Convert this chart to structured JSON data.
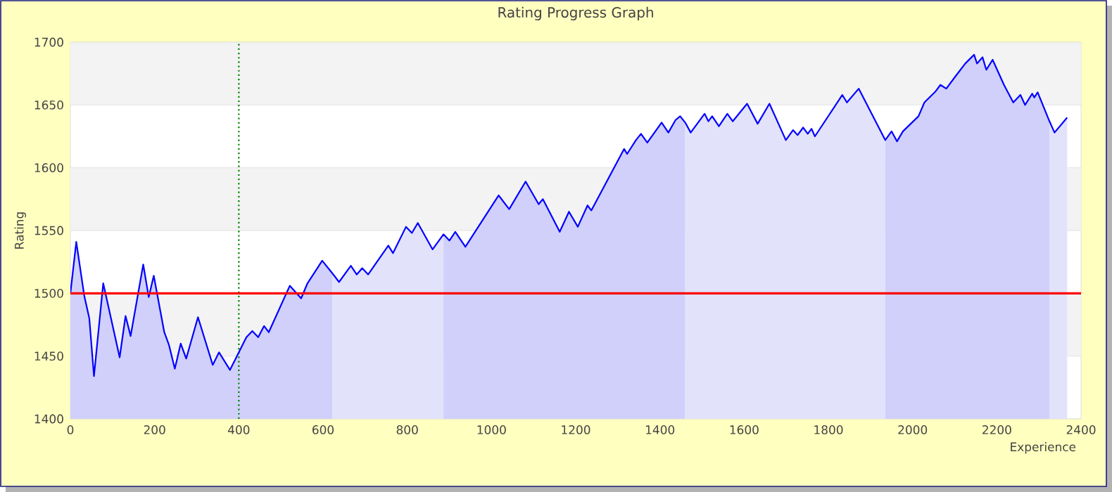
{
  "chart_data": {
    "type": "area",
    "title": "Rating Progress Graph",
    "xlabel": "Experience",
    "ylabel": "Rating",
    "series": [
      {
        "color": "#d0d0fb",
        "x": [
          0,
          14,
          33,
          45,
          56,
          78,
          117,
          131,
          143,
          173,
          186,
          198,
          223,
          234,
          248,
          262,
          275,
          303,
          338,
          353,
          379,
          418,
          432,
          446,
          460,
          471,
          521,
          548,
          563,
          598,
          622
        ],
        "values": [
          1500,
          1541,
          1498,
          1480,
          1434,
          1508,
          1449,
          1482,
          1466,
          1523,
          1497,
          1514,
          1469,
          1459,
          1440,
          1460,
          1448,
          1481,
          1443,
          1453,
          1439,
          1465,
          1470,
          1465,
          1474,
          1469,
          1506,
          1496,
          1508,
          1526,
          1516
        ]
      },
      {
        "color": "#e2e2fb",
        "x": [
          622,
          638,
          666,
          680,
          693,
          707,
          755,
          766,
          797,
          811,
          825,
          860,
          886
        ],
        "values": [
          1516,
          1509,
          1522,
          1515,
          1520,
          1515,
          1538,
          1532,
          1553,
          1548,
          1556,
          1535,
          1547
        ]
      },
      {
        "color": "#d0d0fb",
        "x": [
          886,
          900,
          914,
          938,
          1017,
          1042,
          1081,
          1112,
          1122,
          1162,
          1184,
          1205,
          1228,
          1237,
          1315,
          1322,
          1343,
          1355,
          1370,
          1404,
          1420,
          1437,
          1448,
          1460
        ],
        "values": [
          1547,
          1542,
          1549,
          1537,
          1578,
          1567,
          1589,
          1571,
          1575,
          1549,
          1565,
          1553,
          1570,
          1566,
          1615,
          1611,
          1622,
          1627,
          1620,
          1636,
          1628,
          1638,
          1641,
          1636
        ]
      },
      {
        "color": "#e2e2fb",
        "x": [
          1460,
          1473,
          1506,
          1515,
          1524,
          1540,
          1560,
          1573,
          1607,
          1632,
          1660,
          1699,
          1716,
          1727,
          1740,
          1751,
          1760,
          1768,
          1833,
          1844,
          1872,
          1935
        ],
        "values": [
          1636,
          1628,
          1643,
          1637,
          1641,
          1633,
          1643,
          1637,
          1651,
          1635,
          1651,
          1622,
          1630,
          1626,
          1632,
          1627,
          1631,
          1625,
          1658,
          1652,
          1663,
          1622
        ]
      },
      {
        "color": "#d0d0fb",
        "x": [
          1935,
          1950,
          1963,
          1977,
          2014,
          2028,
          2055,
          2066,
          2080,
          2100,
          2125,
          2146,
          2153,
          2166,
          2175,
          2190,
          2217,
          2239,
          2256,
          2267,
          2284,
          2289,
          2297,
          2325
        ],
        "values": [
          1622,
          1629,
          1621,
          1629,
          1641,
          1652,
          1661,
          1666,
          1663,
          1672,
          1683,
          1690,
          1683,
          1688,
          1678,
          1686,
          1666,
          1652,
          1658,
          1650,
          1659,
          1656,
          1660,
          1637
        ]
      },
      {
        "color": "#e2e2fb",
        "x": [
          2325,
          2337,
          2367
        ],
        "values": [
          1637,
          1628,
          1640
        ]
      },
      {
        "type": "line",
        "color": "#0000ff",
        "x": [
          0,
          14,
          33,
          45,
          56,
          78,
          117,
          131,
          143,
          173,
          186,
          198,
          223,
          234,
          248,
          262,
          275,
          303,
          338,
          353,
          379,
          418,
          432,
          446,
          460,
          471,
          521,
          548,
          563,
          598,
          622,
          638,
          666,
          680,
          693,
          707,
          755,
          766,
          797,
          811,
          825,
          860,
          886,
          900,
          914,
          938,
          1017,
          1042,
          1081,
          1112,
          1122,
          1162,
          1184,
          1205,
          1228,
          1237,
          1315,
          1322,
          1343,
          1355,
          1370,
          1404,
          1420,
          1437,
          1448,
          1460,
          1473,
          1506,
          1515,
          1524,
          1540,
          1560,
          1573,
          1607,
          1632,
          1660,
          1699,
          1716,
          1727,
          1740,
          1751,
          1760,
          1768,
          1833,
          1844,
          1872,
          1935,
          1950,
          1963,
          1977,
          2014,
          2028,
          2055,
          2066,
          2080,
          2100,
          2125,
          2146,
          2153,
          2166,
          2175,
          2190,
          2217,
          2239,
          2256,
          2267,
          2284,
          2289,
          2297,
          2325,
          2337,
          2367
        ],
        "values": [
          1500,
          1541,
          1498,
          1480,
          1434,
          1508,
          1449,
          1482,
          1466,
          1523,
          1497,
          1514,
          1469,
          1459,
          1440,
          1460,
          1448,
          1481,
          1443,
          1453,
          1439,
          1465,
          1470,
          1465,
          1474,
          1469,
          1506,
          1496,
          1508,
          1526,
          1516,
          1509,
          1522,
          1515,
          1520,
          1515,
          1538,
          1532,
          1553,
          1548,
          1556,
          1535,
          1547,
          1542,
          1549,
          1537,
          1578,
          1567,
          1589,
          1571,
          1575,
          1549,
          1565,
          1553,
          1570,
          1566,
          1615,
          1611,
          1622,
          1627,
          1620,
          1636,
          1628,
          1638,
          1641,
          1636,
          1628,
          1643,
          1637,
          1641,
          1633,
          1643,
          1637,
          1651,
          1635,
          1651,
          1622,
          1630,
          1626,
          1632,
          1627,
          1631,
          1625,
          1658,
          1652,
          1663,
          1622,
          1629,
          1621,
          1629,
          1641,
          1652,
          1661,
          1666,
          1663,
          1672,
          1683,
          1690,
          1683,
          1688,
          1678,
          1686,
          1666,
          1652,
          1658,
          1650,
          1659,
          1656,
          1660,
          1637,
          1628,
          1640
        ]
      }
    ],
    "xlim": [
      0,
      2400
    ],
    "ylim": [
      1400,
      1700
    ],
    "xticks": [
      0,
      200,
      400,
      600,
      800,
      1000,
      1200,
      1400,
      1600,
      1800,
      2000,
      2200,
      2400
    ],
    "yticks": [
      1400,
      1450,
      1500,
      1550,
      1600,
      1650,
      1700
    ],
    "grid": "y",
    "marker": "none",
    "ref_lines": [
      {
        "axis": "y",
        "value": 1500,
        "color": "#ff0000",
        "line_style": "solid"
      },
      {
        "axis": "x",
        "value": 400,
        "color": "#008000",
        "line_style": "dotted"
      }
    ]
  }
}
